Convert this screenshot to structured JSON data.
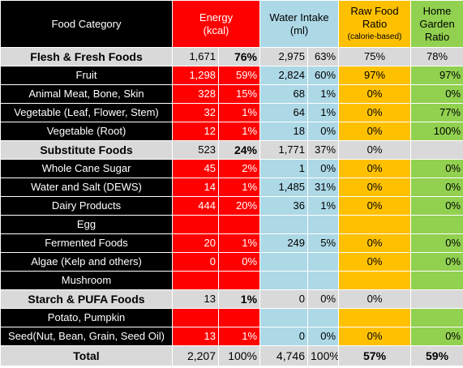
{
  "header": {
    "category": "Food Category",
    "energy_line1": "Energy",
    "energy_line2": "(kcal)",
    "water_line1": "Water Intake",
    "water_line2": "(ml)",
    "raw_line1": "Raw Food",
    "raw_line2": "Ratio",
    "raw_line3": "(calorie-based)",
    "home_line1": "Home",
    "home_line2": "Garden",
    "home_line3": "Ratio"
  },
  "rows": [
    {
      "type": "section",
      "category": "Flesh & Fresh Foods",
      "kcal": "1,671",
      "kcal_pct": "76%",
      "water": "2,975",
      "water_pct": "63%",
      "raw": "75%",
      "home": "78%"
    },
    {
      "type": "item",
      "category": "Fruit",
      "kcal": "1,298",
      "kcal_pct": "59%",
      "water": "2,824",
      "water_pct": "60%",
      "raw": "97%",
      "home": "97%"
    },
    {
      "type": "item",
      "category": "Animal Meat, Bone, Skin",
      "kcal": "328",
      "kcal_pct": "15%",
      "water": "68",
      "water_pct": "1%",
      "raw": "0%",
      "home": "0%"
    },
    {
      "type": "item",
      "category": "Vegetable (Leaf, Flower, Stem)",
      "kcal": "32",
      "kcal_pct": "1%",
      "water": "64",
      "water_pct": "1%",
      "raw": "0%",
      "home": "77%"
    },
    {
      "type": "item",
      "category": "Vegetable (Root)",
      "kcal": "12",
      "kcal_pct": "1%",
      "water": "18",
      "water_pct": "0%",
      "raw": "0%",
      "home": "100%"
    },
    {
      "type": "section",
      "category": "Substitute Foods",
      "kcal": "523",
      "kcal_pct": "24%",
      "water": "1,771",
      "water_pct": "37%",
      "raw": "0%",
      "home": ""
    },
    {
      "type": "item",
      "category": "Whole Cane Sugar",
      "kcal": "45",
      "kcal_pct": "2%",
      "water": "1",
      "water_pct": "0%",
      "raw": "0%",
      "home": "0%"
    },
    {
      "type": "item",
      "category": "Water and Salt (DEWS)",
      "kcal": "14",
      "kcal_pct": "1%",
      "water": "1,485",
      "water_pct": "31%",
      "raw": "0%",
      "home": "0%"
    },
    {
      "type": "item",
      "category": "Dairy Products",
      "kcal": "444",
      "kcal_pct": "20%",
      "water": "36",
      "water_pct": "1%",
      "raw": "0%",
      "home": "0%"
    },
    {
      "type": "item",
      "category": "Egg",
      "kcal": "",
      "kcal_pct": "",
      "water": "",
      "water_pct": "",
      "raw": "",
      "home": ""
    },
    {
      "type": "item",
      "category": "Fermented Foods",
      "kcal": "20",
      "kcal_pct": "1%",
      "water": "249",
      "water_pct": "5%",
      "raw": "0%",
      "home": "0%"
    },
    {
      "type": "item",
      "category": "Algae (Kelp and others)",
      "kcal": "0",
      "kcal_pct": "0%",
      "water": "",
      "water_pct": "",
      "raw": "0%",
      "home": "0%"
    },
    {
      "type": "item",
      "category": "Mushroom",
      "kcal": "",
      "kcal_pct": "",
      "water": "",
      "water_pct": "",
      "raw": "",
      "home": ""
    },
    {
      "type": "section",
      "category": "Starch & PUFA Foods",
      "kcal": "13",
      "kcal_pct": "1%",
      "water": "0",
      "water_pct": "0%",
      "raw": "0%",
      "home": ""
    },
    {
      "type": "item",
      "category": "Potato, Pumpkin",
      "kcal": "",
      "kcal_pct": "",
      "water": "",
      "water_pct": "",
      "raw": "",
      "home": ""
    },
    {
      "type": "item",
      "category": "Seed(Nut, Bean, Grain, Seed Oil)",
      "kcal": "13",
      "kcal_pct": "1%",
      "water": "0",
      "water_pct": "0%",
      "raw": "0%",
      "home": "0%"
    }
  ],
  "total": {
    "category": "Total",
    "kcal": "2,207",
    "kcal_pct": "100%",
    "water": "4,746",
    "water_pct": "100%",
    "raw": "57%",
    "home": "59%"
  },
  "colors": {
    "energy": "#ff0000",
    "water": "#add8e6",
    "raw": "#ffc000",
    "home": "#92d050",
    "section": "#d9d9d9",
    "item": "#000000"
  }
}
